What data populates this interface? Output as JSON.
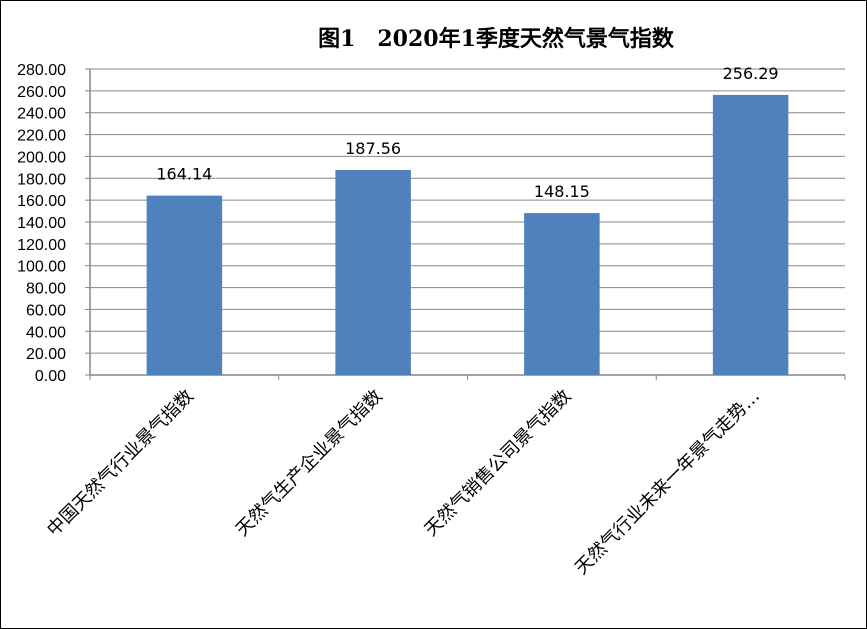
{
  "chart_data": {
    "type": "bar",
    "title": "图1　2020年1季度天然气景气指数",
    "categories": [
      "中国天然气行业景气指数",
      "天然气生产企业景气指数",
      "天然气销售公司景气指数",
      "天然气行业未来一年景气走势…"
    ],
    "series": [
      {
        "values": [
          164.14,
          187.56,
          148.15,
          256.29
        ]
      }
    ],
    "data_labels": [
      "164.14",
      "187.56",
      "148.15",
      "256.29"
    ],
    "ylim": [
      0,
      280
    ],
    "ytick_labels": [
      "0.00",
      "20.00",
      "40.00",
      "60.00",
      "80.00",
      "100.00",
      "120.00",
      "140.00",
      "160.00",
      "180.00",
      "200.00",
      "220.00",
      "240.00",
      "260.00",
      "280.00"
    ],
    "xlabel": "",
    "ylabel": "",
    "grid": true,
    "legend": "none",
    "colors": {
      "bar": "#4f81bd",
      "grid": "#868686",
      "axis": "#868686"
    }
  }
}
